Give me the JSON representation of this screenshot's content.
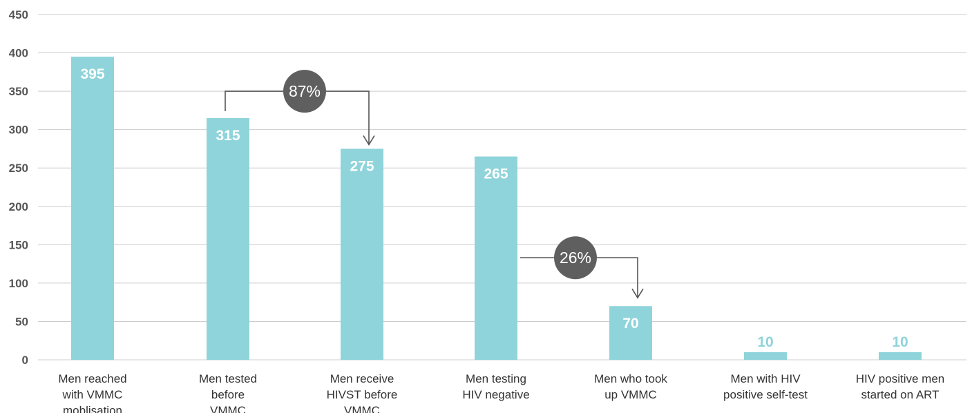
{
  "chart_data": {
    "type": "bar",
    "categories": [
      "Men reached with VMMC mobilisation",
      "Men tested before VMMC",
      "Men receive HIVST before VMMC",
      "Men testing HIV negative",
      "Men who took up VMMC",
      "Men with HIV positive self-test",
      "HIV positive men started on ART"
    ],
    "category_lines": [
      [
        "Men reached",
        "with VMMC",
        "moblisation"
      ],
      [
        "Men tested",
        "before",
        "VMMC"
      ],
      [
        "Men receive",
        "HIVST before",
        "VMMC"
      ],
      [
        "Men testing",
        "HIV negative"
      ],
      [
        "Men who took",
        "up VMMC"
      ],
      [
        "Men with HIV",
        "positive self-test"
      ],
      [
        "HIV positive men",
        "started on ART"
      ]
    ],
    "values": [
      395,
      315,
      275,
      265,
      70,
      10,
      10
    ],
    "value_labels": [
      "395",
      "315",
      "275",
      "265",
      "70",
      "10",
      "10"
    ],
    "ylim": [
      0,
      450
    ],
    "yticks": [
      0,
      50,
      100,
      150,
      200,
      250,
      300,
      350,
      400,
      450
    ],
    "grid": true,
    "annotations": [
      {
        "text": "87%",
        "from_index": 1,
        "to_index": 2
      },
      {
        "text": "26%",
        "from_index": 3,
        "to_index": 4
      }
    ],
    "colors": {
      "bar": "#8fd4da",
      "grid": "#cccccc",
      "callout": "#5f5f5f",
      "arrow": "#555555",
      "inside_label": "#ffffff",
      "outside_label": "#8fd4da"
    }
  }
}
